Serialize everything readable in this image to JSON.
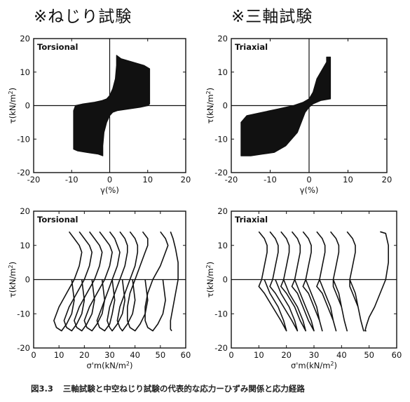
{
  "headings": {
    "left": "※ねじり試験",
    "right": "※三軸試験"
  },
  "caption": {
    "number": "図3.3",
    "text": "三軸試験と中空ねじり試験の代表的な応力ーひずみ関係と応力経路"
  },
  "chart_data": [
    {
      "id": "torsional-stress-strain",
      "type": "line",
      "legend": "Torsional",
      "xlabel": "γ(%)",
      "ylabel": "τ(kN/m²)",
      "xlim": [
        -20,
        20
      ],
      "ylim": [
        -20,
        20
      ],
      "xticks": [
        -20,
        -10,
        0,
        10,
        20
      ],
      "yticks": [
        -20,
        -10,
        0,
        10,
        20
      ],
      "zero_lines": true,
      "series": [
        {
          "x": [
            -9.5,
            -9.5,
            -9,
            -7,
            -4,
            -2,
            -0.8,
            0,
            0.8,
            1.5,
            1.8,
            1.8,
            3,
            6,
            9,
            10.5,
            10.5,
            10,
            8,
            5,
            2,
            0.8,
            0,
            -0.8,
            -1.5,
            -1.8,
            -1.8,
            -3,
            -6,
            -8.5,
            -9.5
          ],
          "y": [
            -13,
            -1.5,
            0,
            0.5,
            1,
            1.5,
            2,
            3,
            5,
            8,
            12,
            15,
            14,
            13,
            12,
            11,
            0.5,
            0,
            -0.5,
            -1,
            -1.5,
            -2,
            -3,
            -5,
            -8,
            -12,
            -15,
            -14.5,
            -14,
            -13.5,
            -13
          ]
        }
      ]
    },
    {
      "id": "triaxial-stress-strain",
      "type": "line",
      "legend": "Triaxial",
      "xlabel": "γ(%)",
      "ylabel": "τ(kN/m²)",
      "xlim": [
        -20,
        20
      ],
      "ylim": [
        -20,
        20
      ],
      "xticks": [
        -20,
        -10,
        0,
        10,
        20
      ],
      "yticks": [
        -20,
        -10,
        0,
        10,
        20
      ],
      "zero_lines": true,
      "series": [
        {
          "x": [
            -17.5,
            -17.5,
            -16,
            -12,
            -8,
            -4,
            -1.5,
            0,
            1,
            2,
            4.5,
            4.5,
            5.5,
            5.5,
            3,
            1,
            0,
            -1,
            -3,
            -6,
            -9,
            -12,
            -15,
            -17.5
          ],
          "y": [
            -15,
            -5,
            -3,
            -2,
            -1,
            0,
            1,
            2,
            4,
            8,
            13,
            14.5,
            14.5,
            2,
            1.5,
            0.5,
            -0.5,
            -2,
            -8,
            -12,
            -14,
            -14.5,
            -15,
            -15
          ]
        }
      ]
    },
    {
      "id": "torsional-stress-path",
      "type": "line",
      "legend": "Torsional",
      "xlabel": "σ'm(kN/m²)",
      "ylabel": "τ(kN/m²)",
      "xlim": [
        0,
        60
      ],
      "ylim": [
        -20,
        20
      ],
      "xticks": [
        0,
        10,
        20,
        30,
        40,
        50,
        60
      ],
      "yticks": [
        -20,
        -10,
        0,
        10,
        20
      ],
      "zero_lines": true,
      "series": [
        {
          "x": [
            14,
            16,
            18,
            19,
            18,
            16,
            13,
            10,
            8,
            9,
            11,
            13,
            15,
            16,
            15
          ],
          "y": [
            14,
            12,
            10,
            8,
            4,
            0,
            -4,
            -8,
            -12,
            -14,
            -15,
            -13,
            -10,
            -6,
            0
          ]
        },
        {
          "x": [
            18,
            20,
            22,
            23,
            22,
            20,
            17,
            14,
            12,
            13,
            15,
            17,
            19,
            20,
            19
          ],
          "y": [
            14,
            12,
            10,
            8,
            4,
            0,
            -4,
            -8,
            -12,
            -14,
            -15,
            -13,
            -10,
            -6,
            0
          ]
        },
        {
          "x": [
            22,
            24,
            26,
            27,
            26,
            24,
            21,
            18,
            16,
            17,
            19,
            21,
            23,
            24,
            23
          ],
          "y": [
            14,
            12,
            10,
            8,
            4,
            0,
            -4,
            -8,
            -12,
            -14,
            -15,
            -13,
            -10,
            -6,
            0
          ]
        },
        {
          "x": [
            26,
            28,
            30,
            31,
            30,
            28,
            25,
            22,
            20,
            21,
            23,
            25,
            27,
            28,
            27
          ],
          "y": [
            14,
            12,
            10,
            8,
            4,
            0,
            -4,
            -8,
            -12,
            -14,
            -15,
            -13,
            -10,
            -6,
            0
          ]
        },
        {
          "x": [
            30,
            32,
            33,
            34,
            33,
            31,
            29,
            27,
            25,
            26,
            28,
            30,
            31,
            32,
            31
          ],
          "y": [
            14,
            12,
            10,
            8,
            4,
            0,
            -4,
            -8,
            -12,
            -14,
            -15,
            -13,
            -10,
            -6,
            0
          ]
        },
        {
          "x": [
            34,
            36,
            37,
            37,
            36,
            34,
            32,
            30,
            29,
            30,
            31,
            33,
            35,
            36,
            35
          ],
          "y": [
            14,
            12,
            10,
            8,
            4,
            0,
            -4,
            -8,
            -12,
            -14,
            -15,
            -13,
            -10,
            -6,
            0
          ]
        },
        {
          "x": [
            38,
            40,
            41,
            41,
            40,
            38,
            36,
            34,
            33,
            34,
            35,
            37,
            39,
            40,
            39
          ],
          "y": [
            14,
            12,
            10,
            8,
            4,
            0,
            -4,
            -8,
            -12,
            -14,
            -15,
            -13,
            -10,
            -6,
            0
          ]
        },
        {
          "x": [
            43,
            45,
            45,
            44,
            42,
            40,
            38,
            37,
            37,
            38,
            40,
            42,
            44,
            45,
            44
          ],
          "y": [
            14,
            12,
            10,
            8,
            4,
            0,
            -4,
            -8,
            -12,
            -14,
            -15,
            -13,
            -10,
            -6,
            0
          ]
        },
        {
          "x": [
            50,
            52,
            53,
            52,
            50,
            47,
            45,
            44,
            44,
            45,
            47,
            49,
            51,
            52,
            51
          ],
          "y": [
            14,
            12,
            10,
            8,
            4,
            0,
            -4,
            -8,
            -12,
            -14,
            -15,
            -13,
            -10,
            -6,
            0
          ]
        },
        {
          "x": [
            54,
            55,
            56,
            57,
            57,
            56,
            55,
            54,
            54,
            54.5
          ],
          "y": [
            14,
            12,
            9,
            5,
            0,
            -4,
            -8,
            -12,
            -14.5,
            -15
          ]
        }
      ]
    },
    {
      "id": "triaxial-stress-path",
      "type": "line",
      "legend": "Triaxial",
      "xlabel": "σ'm(kN/m²)",
      "ylabel": "τ(kN/m²)",
      "xlim": [
        0,
        60
      ],
      "ylim": [
        -20,
        20
      ],
      "xticks": [
        0,
        10,
        20,
        30,
        40,
        50,
        60
      ],
      "yticks": [
        -20,
        -10,
        0,
        10,
        20
      ],
      "zero_lines": true,
      "series": [
        {
          "x": [
            10,
            12,
            13,
            13,
            12,
            11,
            10,
            12,
            15,
            18,
            20,
            19,
            17,
            14,
            12
          ],
          "y": [
            14,
            12,
            10,
            8,
            4,
            0,
            -2,
            -4,
            -8,
            -12,
            -15,
            -12,
            -8,
            -4,
            0
          ]
        },
        {
          "x": [
            14,
            16,
            17,
            17,
            16,
            15,
            14,
            16,
            19,
            22,
            24,
            23,
            21,
            18,
            16
          ],
          "y": [
            14,
            12,
            10,
            8,
            4,
            0,
            -2,
            -4,
            -8,
            -12,
            -15,
            -12,
            -8,
            -4,
            0
          ]
        },
        {
          "x": [
            18,
            20,
            21,
            21,
            20,
            19,
            18,
            20,
            23,
            25,
            27,
            26,
            24,
            21,
            19
          ],
          "y": [
            14,
            12,
            10,
            8,
            4,
            0,
            -2,
            -4,
            -8,
            -12,
            -15,
            -12,
            -8,
            -4,
            0
          ]
        },
        {
          "x": [
            22,
            24,
            25,
            25,
            24,
            23,
            22,
            24,
            26,
            28,
            30,
            29,
            27,
            25,
            23
          ],
          "y": [
            14,
            12,
            10,
            8,
            4,
            0,
            -2,
            -4,
            -8,
            -12,
            -15,
            -12,
            -8,
            -4,
            0
          ]
        },
        {
          "x": [
            26,
            28,
            29,
            29,
            28,
            27,
            26,
            28,
            30,
            32,
            33,
            32,
            31,
            29,
            27
          ],
          "y": [
            14,
            12,
            10,
            8,
            4,
            0,
            -2,
            -4,
            -8,
            -12,
            -15,
            -12,
            -8,
            -4,
            0
          ]
        },
        {
          "x": [
            31,
            33,
            34,
            34,
            33,
            32,
            31,
            33,
            35,
            37,
            38,
            37,
            36,
            34,
            32
          ],
          "y": [
            14,
            12,
            10,
            8,
            4,
            0,
            -2,
            -4,
            -8,
            -12,
            -15,
            -12,
            -8,
            -4,
            0
          ]
        },
        {
          "x": [
            36,
            38,
            39,
            39,
            38,
            37,
            37,
            38,
            40,
            41,
            42,
            41,
            40,
            39,
            37
          ],
          "y": [
            14,
            12,
            10,
            8,
            4,
            0,
            -2,
            -4,
            -8,
            -12,
            -15,
            -12,
            -8,
            -4,
            0
          ]
        },
        {
          "x": [
            42,
            44,
            45,
            45,
            44,
            43,
            43,
            44,
            46,
            47,
            48,
            47,
            46,
            45,
            43
          ],
          "y": [
            14,
            12,
            10,
            8,
            4,
            0,
            -2,
            -4,
            -8,
            -12,
            -15,
            -12,
            -8,
            -4,
            0
          ]
        },
        {
          "x": [
            54,
            56,
            57,
            57,
            56,
            54,
            52,
            50,
            49,
            48.5,
            49
          ],
          "y": [
            14,
            13.5,
            10,
            5,
            0,
            -4,
            -8,
            -11,
            -13.5,
            -15,
            -15
          ]
        }
      ]
    }
  ]
}
